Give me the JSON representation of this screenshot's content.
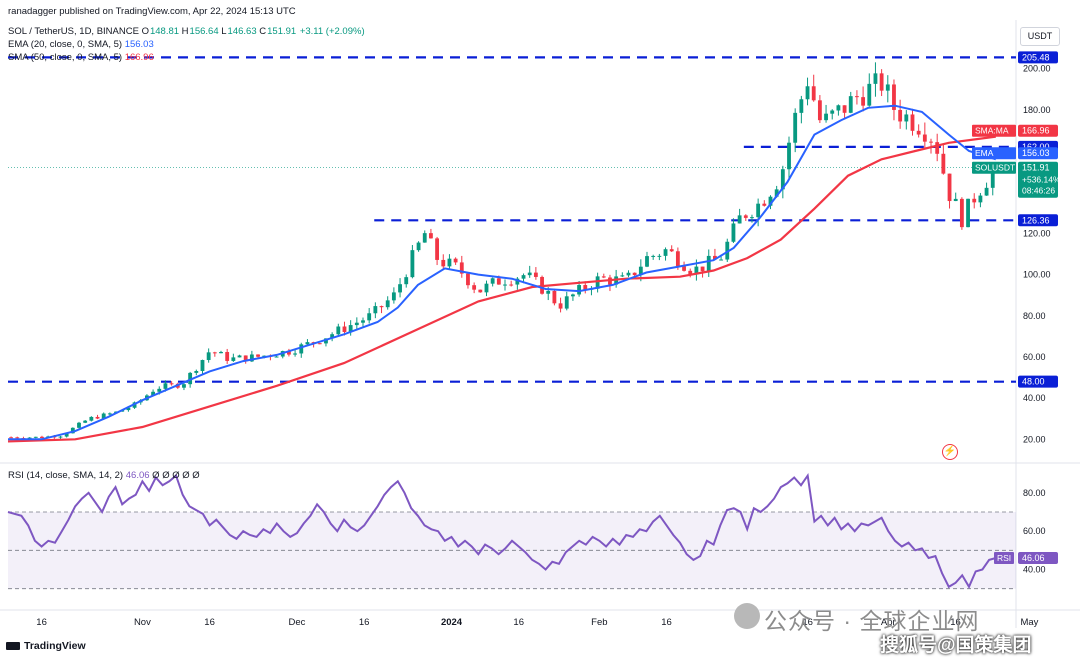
{
  "header": {
    "publisher": "ranadagger published on TradingView.com, Apr 22, 2024 15:13 UTC",
    "symbol": "SOL / TetherUS, 1D, BINANCE",
    "ohlc": {
      "O": "148.81",
      "H": "156.64",
      "L": "146.63",
      "C": "151.91",
      "change": "+3.11 (+2.09%)"
    },
    "ema_label": "EMA (20, close, 0, SMA, 5)",
    "ema_value": "156.03",
    "sma_label": "SMA (50, close, 0, SMA, 5)",
    "sma_value": "166.96",
    "rsi_label": "RSI (14, close, SMA, 14, 2)",
    "rsi_value": "46.06",
    "rsi_extra": "Ø Ø Ø Ø Ø"
  },
  "currency_button": "USDT",
  "branding": "TradingView",
  "watermark": {
    "line1": "公众号 · 全球企业网",
    "line2": "搜狐号@国策集团"
  },
  "colors": {
    "up": "#089981",
    "down": "#f23645",
    "ema": "#2962ff",
    "sma": "#f23645",
    "rsi": "#7e57c2",
    "level": "#0a1fd6"
  },
  "chart_data": [
    {
      "type": "candlestick",
      "title": "SOL / TetherUS, 1D, BINANCE",
      "y_ticks": [
        20,
        40,
        60,
        80,
        100,
        120,
        140,
        160,
        180,
        200
      ],
      "ylim": [
        9,
        211
      ],
      "x_ticks": [
        {
          "label": "16",
          "t": 0.05
        },
        {
          "label": "Nov",
          "t": 0.2
        },
        {
          "label": "16",
          "t": 0.3
        },
        {
          "label": "Dec",
          "t": 0.43
        },
        {
          "label": "16",
          "t": 0.53
        },
        {
          "label": "2024",
          "t": 0.66
        },
        {
          "label": "16",
          "t": 0.76
        },
        {
          "label": "Feb",
          "t": 0.88
        },
        {
          "label": "16",
          "t": 0.98
        },
        {
          "label": "Mar",
          "t": 1.1
        },
        {
          "label": "16",
          "t": 1.19
        },
        {
          "label": "Apr",
          "t": 1.31
        },
        {
          "label": "16",
          "t": 1.41
        },
        {
          "label": "May",
          "t": 1.52
        }
      ],
      "horizontal_levels": [
        {
          "value": 205.48,
          "label": "205.48",
          "x_start_t": 0.0
        },
        {
          "value": 162.0,
          "label": "162.00",
          "x_start_t": 1.095
        },
        {
          "value": 126.36,
          "label": "126.36",
          "x_start_t": 0.545
        },
        {
          "value": 48.0,
          "label": "48.00",
          "x_start_t": 0.0
        }
      ],
      "price_labels": [
        {
          "label": "SMA:MA",
          "value": "166.96",
          "color": "#f23645",
          "y": 166.96
        },
        {
          "label": "EMA",
          "value": "156.03",
          "color": "#2962ff",
          "y": 156.03
        },
        {
          "label": "SOLUSDT",
          "value": "151.91",
          "sub": [
            "+536.14%",
            "08:46:26"
          ],
          "color": "#089981",
          "y": 151.91
        }
      ],
      "price_anchors": [
        [
          0.0,
          21
        ],
        [
          0.05,
          21
        ],
        [
          0.08,
          22
        ],
        [
          0.12,
          30
        ],
        [
          0.16,
          33
        ],
        [
          0.19,
          37
        ],
        [
          0.22,
          45
        ],
        [
          0.26,
          47
        ],
        [
          0.28,
          55
        ],
        [
          0.3,
          63
        ],
        [
          0.33,
          59
        ],
        [
          0.37,
          60
        ],
        [
          0.42,
          63
        ],
        [
          0.46,
          68
        ],
        [
          0.5,
          74
        ],
        [
          0.54,
          80
        ],
        [
          0.575,
          90
        ],
        [
          0.6,
          107
        ],
        [
          0.62,
          120
        ],
        [
          0.64,
          107
        ],
        [
          0.67,
          103
        ],
        [
          0.7,
          92
        ],
        [
          0.73,
          97
        ],
        [
          0.77,
          100
        ],
        [
          0.8,
          92
        ],
        [
          0.82,
          85
        ],
        [
          0.85,
          92
        ],
        [
          0.88,
          98
        ],
        [
          0.92,
          97
        ],
        [
          0.95,
          108
        ],
        [
          0.98,
          112
        ],
        [
          1.02,
          102
        ],
        [
          1.06,
          108
        ],
        [
          1.09,
          128
        ],
        [
          1.12,
          135
        ],
        [
          1.15,
          148
        ],
        [
          1.17,
          175
        ],
        [
          1.19,
          195
        ],
        [
          1.21,
          173
        ],
        [
          1.24,
          180
        ],
        [
          1.27,
          188
        ],
        [
          1.3,
          193
        ],
        [
          1.32,
          180
        ],
        [
          1.34,
          176
        ],
        [
          1.36,
          172
        ],
        [
          1.38,
          165
        ],
        [
          1.4,
          140
        ],
        [
          1.42,
          127
        ],
        [
          1.44,
          139
        ],
        [
          1.46,
          148
        ],
        [
          1.47,
          152
        ]
      ],
      "ema20": [
        [
          0.0,
          20
        ],
        [
          0.05,
          20
        ],
        [
          0.1,
          24
        ],
        [
          0.15,
          31
        ],
        [
          0.2,
          39
        ],
        [
          0.25,
          46
        ],
        [
          0.3,
          53
        ],
        [
          0.35,
          58
        ],
        [
          0.4,
          61
        ],
        [
          0.45,
          66
        ],
        [
          0.5,
          71
        ],
        [
          0.55,
          77
        ],
        [
          0.58,
          84
        ],
        [
          0.61,
          95
        ],
        [
          0.65,
          103
        ],
        [
          0.7,
          100
        ],
        [
          0.75,
          98
        ],
        [
          0.8,
          93
        ],
        [
          0.85,
          92
        ],
        [
          0.9,
          95
        ],
        [
          0.95,
          101
        ],
        [
          1.0,
          104
        ],
        [
          1.05,
          107
        ],
        [
          1.08,
          113
        ],
        [
          1.12,
          128
        ],
        [
          1.16,
          145
        ],
        [
          1.2,
          168
        ],
        [
          1.24,
          175
        ],
        [
          1.28,
          181
        ],
        [
          1.32,
          182
        ],
        [
          1.36,
          179
        ],
        [
          1.4,
          168
        ],
        [
          1.43,
          160
        ],
        [
          1.47,
          156
        ]
      ],
      "sma50": [
        [
          0.0,
          19
        ],
        [
          0.1,
          20
        ],
        [
          0.2,
          26
        ],
        [
          0.3,
          36
        ],
        [
          0.4,
          46
        ],
        [
          0.5,
          57
        ],
        [
          0.6,
          72
        ],
        [
          0.7,
          87
        ],
        [
          0.78,
          94
        ],
        [
          0.85,
          96
        ],
        [
          0.92,
          98
        ],
        [
          1.0,
          99
        ],
        [
          1.05,
          102
        ],
        [
          1.1,
          108
        ],
        [
          1.15,
          117
        ],
        [
          1.2,
          132
        ],
        [
          1.25,
          148
        ],
        [
          1.3,
          156
        ],
        [
          1.35,
          160
        ],
        [
          1.4,
          164
        ],
        [
          1.47,
          167
        ]
      ]
    },
    {
      "type": "line",
      "title": "RSI (14, close, SMA, 14, 2)",
      "y_ticks": [
        40,
        60,
        80
      ],
      "ylim": [
        22,
        94
      ],
      "band": [
        30,
        70
      ],
      "midline": 50,
      "current": {
        "label": "RSI",
        "value": "46.06"
      },
      "values": [
        [
          0.0,
          70
        ],
        [
          0.02,
          68
        ],
        [
          0.03,
          63
        ],
        [
          0.04,
          55
        ],
        [
          0.05,
          52
        ],
        [
          0.06,
          55
        ],
        [
          0.07,
          54
        ],
        [
          0.08,
          60
        ],
        [
          0.09,
          66
        ],
        [
          0.1,
          73
        ],
        [
          0.11,
          77
        ],
        [
          0.12,
          80
        ],
        [
          0.13,
          75
        ],
        [
          0.14,
          70
        ],
        [
          0.15,
          78
        ],
        [
          0.16,
          83
        ],
        [
          0.17,
          74
        ],
        [
          0.18,
          77
        ],
        [
          0.19,
          79
        ],
        [
          0.2,
          86
        ],
        [
          0.21,
          81
        ],
        [
          0.22,
          88
        ],
        [
          0.23,
          84
        ],
        [
          0.24,
          86
        ],
        [
          0.25,
          89
        ],
        [
          0.26,
          79
        ],
        [
          0.27,
          73
        ],
        [
          0.28,
          71
        ],
        [
          0.29,
          69
        ],
        [
          0.3,
          63
        ],
        [
          0.31,
          66
        ],
        [
          0.32,
          62
        ],
        [
          0.33,
          58
        ],
        [
          0.34,
          56
        ],
        [
          0.35,
          60
        ],
        [
          0.36,
          58
        ],
        [
          0.37,
          57
        ],
        [
          0.38,
          61
        ],
        [
          0.39,
          59
        ],
        [
          0.4,
          64
        ],
        [
          0.41,
          60
        ],
        [
          0.42,
          57
        ],
        [
          0.43,
          59
        ],
        [
          0.44,
          64
        ],
        [
          0.45,
          68
        ],
        [
          0.46,
          74
        ],
        [
          0.47,
          70
        ],
        [
          0.48,
          64
        ],
        [
          0.49,
          60
        ],
        [
          0.5,
          66
        ],
        [
          0.51,
          62
        ],
        [
          0.52,
          60
        ],
        [
          0.53,
          63
        ],
        [
          0.54,
          68
        ],
        [
          0.55,
          73
        ],
        [
          0.56,
          79
        ],
        [
          0.57,
          83
        ],
        [
          0.58,
          86
        ],
        [
          0.59,
          80
        ],
        [
          0.6,
          72
        ],
        [
          0.61,
          68
        ],
        [
          0.62,
          63
        ],
        [
          0.63,
          61
        ],
        [
          0.64,
          60
        ],
        [
          0.65,
          55
        ],
        [
          0.66,
          57
        ],
        [
          0.67,
          52
        ],
        [
          0.68,
          55
        ],
        [
          0.69,
          52
        ],
        [
          0.7,
          48
        ],
        [
          0.71,
          53
        ],
        [
          0.72,
          51
        ],
        [
          0.73,
          48
        ],
        [
          0.74,
          51
        ],
        [
          0.75,
          55
        ],
        [
          0.76,
          52
        ],
        [
          0.77,
          49
        ],
        [
          0.78,
          45
        ],
        [
          0.79,
          43
        ],
        [
          0.8,
          40
        ],
        [
          0.81,
          44
        ],
        [
          0.82,
          43
        ],
        [
          0.83,
          49
        ],
        [
          0.84,
          52
        ],
        [
          0.85,
          55
        ],
        [
          0.86,
          53
        ],
        [
          0.87,
          57
        ],
        [
          0.88,
          55
        ],
        [
          0.89,
          52
        ],
        [
          0.9,
          56
        ],
        [
          0.91,
          53
        ],
        [
          0.92,
          58
        ],
        [
          0.93,
          57
        ],
        [
          0.94,
          61
        ],
        [
          0.95,
          60
        ],
        [
          0.96,
          65
        ],
        [
          0.97,
          68
        ],
        [
          0.98,
          63
        ],
        [
          0.99,
          58
        ],
        [
          1.0,
          54
        ],
        [
          1.01,
          48
        ],
        [
          1.02,
          45
        ],
        [
          1.03,
          47
        ],
        [
          1.04,
          55
        ],
        [
          1.05,
          53
        ],
        [
          1.06,
          63
        ],
        [
          1.07,
          71
        ],
        [
          1.08,
          72
        ],
        [
          1.09,
          70
        ],
        [
          1.1,
          61
        ],
        [
          1.11,
          72
        ],
        [
          1.12,
          70
        ],
        [
          1.13,
          73
        ],
        [
          1.14,
          77
        ],
        [
          1.15,
          83
        ],
        [
          1.16,
          85
        ],
        [
          1.17,
          88
        ],
        [
          1.18,
          84
        ],
        [
          1.19,
          89
        ],
        [
          1.2,
          65
        ],
        [
          1.21,
          68
        ],
        [
          1.22,
          63
        ],
        [
          1.23,
          67
        ],
        [
          1.24,
          61
        ],
        [
          1.25,
          64
        ],
        [
          1.26,
          60
        ],
        [
          1.27,
          64
        ],
        [
          1.28,
          63
        ],
        [
          1.29,
          65
        ],
        [
          1.3,
          67
        ],
        [
          1.31,
          60
        ],
        [
          1.32,
          55
        ],
        [
          1.33,
          52
        ],
        [
          1.34,
          54
        ],
        [
          1.35,
          50
        ],
        [
          1.36,
          51
        ],
        [
          1.37,
          46
        ],
        [
          1.38,
          47
        ],
        [
          1.39,
          38
        ],
        [
          1.4,
          31
        ],
        [
          1.41,
          33
        ],
        [
          1.42,
          37
        ],
        [
          1.43,
          31
        ],
        [
          1.44,
          39
        ],
        [
          1.45,
          40
        ],
        [
          1.46,
          45
        ],
        [
          1.47,
          46
        ]
      ]
    }
  ]
}
